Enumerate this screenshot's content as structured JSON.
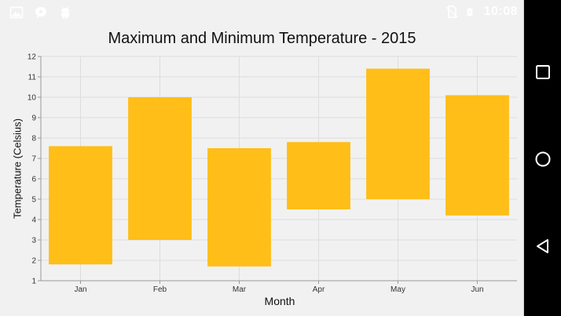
{
  "status_bar": {
    "time": "10:08",
    "left_icons": [
      "image-icon",
      "chat-bubble-icon",
      "android-icon"
    ],
    "right_icons": [
      "no-sim-icon",
      "battery-icon"
    ]
  },
  "nav_bar": {
    "buttons": [
      "recents-square-icon",
      "home-circle-icon",
      "back-triangle-icon"
    ]
  },
  "colors": {
    "bar": "#ffbe18",
    "grid": "#dddddd",
    "screen_bg": "#f1f1f1",
    "nav_bg": "#000000"
  },
  "chart_data": {
    "type": "bar",
    "subtype": "range-column",
    "title": "Maximum and Minimum Temperature - 2015",
    "xlabel": "Month",
    "ylabel": "Temperature (Celsius)",
    "categories": [
      "Jan",
      "Feb",
      "Mar",
      "Apr",
      "May",
      "Jun"
    ],
    "series": [
      {
        "low": [
          1.8,
          3.0,
          1.7,
          4.5,
          5.0,
          4.2
        ],
        "high": [
          7.6,
          10.0,
          7.5,
          7.8,
          11.4,
          10.1
        ]
      }
    ],
    "ylim": [
      1,
      12
    ],
    "yticks": [
      1,
      2,
      3,
      4,
      5,
      6,
      7,
      8,
      9,
      10,
      11,
      12
    ],
    "grid": true,
    "legend": "none"
  }
}
